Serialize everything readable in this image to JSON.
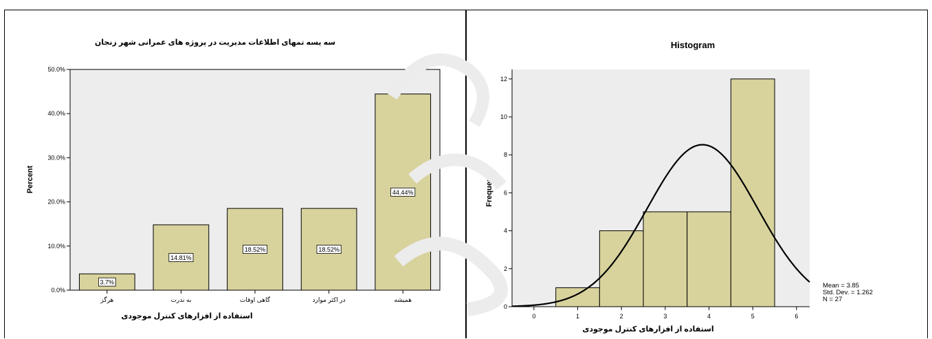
{
  "chart_data": [
    {
      "type": "bar",
      "title": "سه یسه تمهای اطلاعات مدیریت در پروژه های عمرانی شهر زنجان",
      "xlabel": "استفاده از افزارهای کنترل موجودی",
      "ylabel": "Percent",
      "categories": [
        "هرگز",
        "به ندرت",
        "گاهی اوقات",
        "در اکثر موارد",
        "همیشه"
      ],
      "values": [
        3.7,
        14.81,
        18.52,
        18.52,
        44.44
      ],
      "data_labels": [
        "3.7%",
        "14.81%",
        "18.52%",
        "18.52%",
        "44.44%"
      ],
      "yticks": [
        "0.0%",
        "10.0%",
        "20.0%",
        "30.0%",
        "40.0%",
        "50.0%"
      ],
      "ylim": [
        0,
        50
      ],
      "bar_color": "#d8d29d",
      "plot_bg": "#ededed"
    },
    {
      "type": "histogram",
      "title": "Histogram",
      "xlabel": "استفاده از افزارهای کنترل موجودی",
      "ylabel": "Frequency",
      "bins": [
        {
          "x0": 0.5,
          "x1": 1.5,
          "count": 1
        },
        {
          "x0": 1.5,
          "x1": 2.5,
          "count": 4
        },
        {
          "x0": 2.5,
          "x1": 3.5,
          "count": 5
        },
        {
          "x0": 3.5,
          "x1": 4.5,
          "count": 5
        },
        {
          "x0": 4.5,
          "x1": 5.5,
          "count": 12
        }
      ],
      "xticks": [
        "0",
        "1",
        "2",
        "3",
        "4",
        "5",
        "6"
      ],
      "yticks": [
        "0",
        "2",
        "4",
        "6",
        "8",
        "10",
        "12"
      ],
      "xlim": [
        -0.5,
        6.3
      ],
      "ylim": [
        0,
        12.5
      ],
      "normal_curve": {
        "mean": 3.85,
        "std": 1.262,
        "n": 27
      },
      "stats": [
        "Mean = 3.85",
        "Std. Dev. = 1.262",
        "N = 27"
      ],
      "bar_color": "#d8d29d",
      "plot_bg": "#ededed"
    }
  ]
}
